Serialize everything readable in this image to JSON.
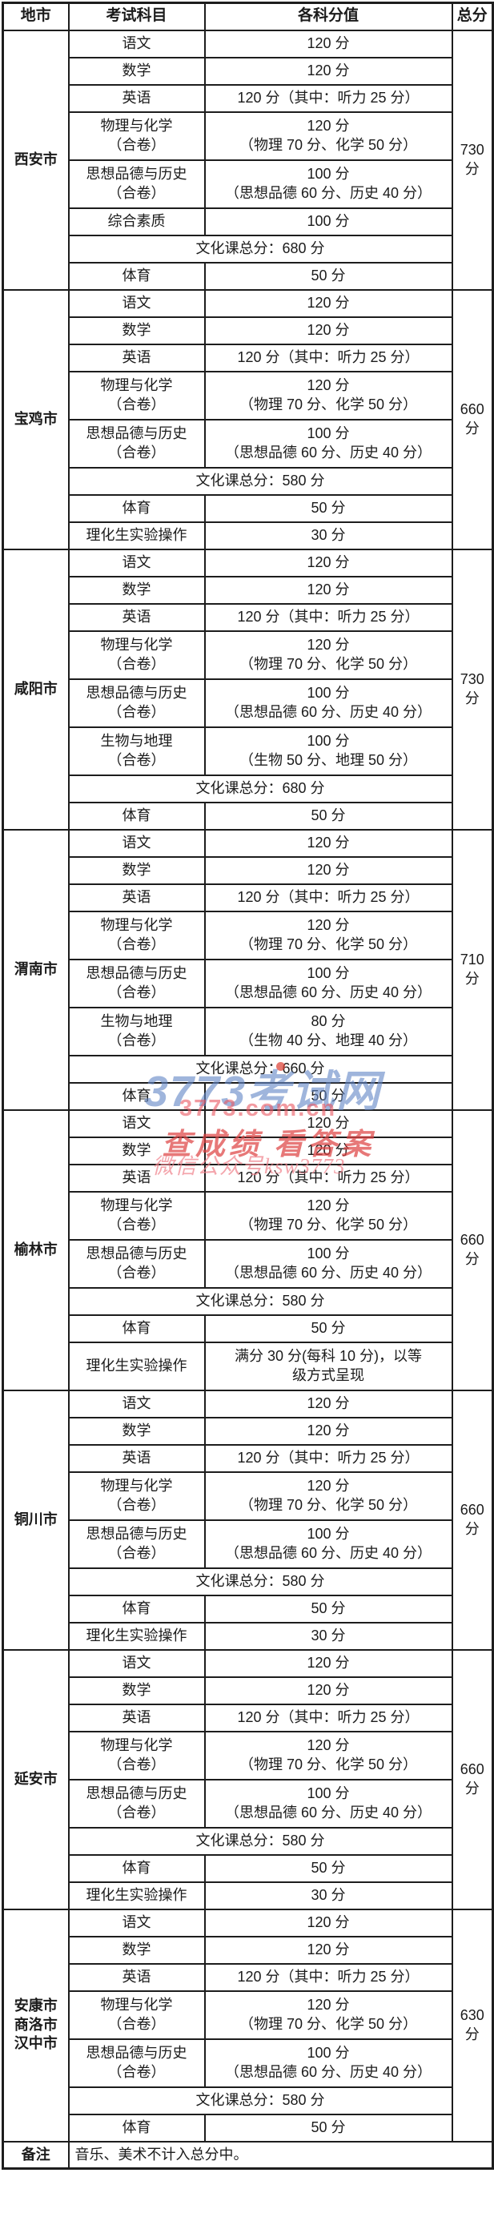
{
  "header": {
    "cols": [
      "地市",
      "考试科目",
      "各科分值",
      "总分"
    ]
  },
  "sections": [
    {
      "city": [
        "西安市"
      ],
      "total": [
        "730",
        "分"
      ],
      "rows": [
        {
          "subject": [
            "语文"
          ],
          "value": [
            "120 分"
          ]
        },
        {
          "subject": [
            "数学"
          ],
          "value": [
            "120 分"
          ]
        },
        {
          "subject": [
            "英语"
          ],
          "value": [
            "120 分（其中：听力 25 分）"
          ]
        },
        {
          "subject": [
            "物理与化学",
            "（合卷）"
          ],
          "value": [
            "120 分",
            "（物理 70 分、化学 50 分）"
          ]
        },
        {
          "subject": [
            "思想品德与历史",
            "（合卷）"
          ],
          "value": [
            "100 分",
            "（思想品德 60 分、历史 40 分）"
          ]
        },
        {
          "subject": [
            "综合素质"
          ],
          "value": [
            "100 分"
          ]
        },
        {
          "merged": [
            "文化课总分：680 分"
          ]
        },
        {
          "subject": [
            "体育"
          ],
          "value": [
            "50 分"
          ]
        }
      ]
    },
    {
      "city": [
        "宝鸡市"
      ],
      "total": [
        "660",
        "分"
      ],
      "rows": [
        {
          "subject": [
            "语文"
          ],
          "value": [
            "120 分"
          ]
        },
        {
          "subject": [
            "数学"
          ],
          "value": [
            "120 分"
          ]
        },
        {
          "subject": [
            "英语"
          ],
          "value": [
            "120 分（其中：听力 25 分）"
          ]
        },
        {
          "subject": [
            "物理与化学",
            "（合卷）"
          ],
          "value": [
            "120 分",
            "（物理 70 分、化学 50 分）"
          ]
        },
        {
          "subject": [
            "思想品德与历史",
            "（合卷）"
          ],
          "value": [
            "100 分",
            "（思想品德 60 分、历史 40 分）"
          ]
        },
        {
          "merged": [
            "文化课总分：580 分"
          ]
        },
        {
          "subject": [
            "体育"
          ],
          "value": [
            "50 分"
          ]
        },
        {
          "subject": [
            "理化生实验操作"
          ],
          "value": [
            "30 分"
          ]
        }
      ]
    },
    {
      "city": [
        "咸阳市"
      ],
      "total": [
        "730",
        "分"
      ],
      "rows": [
        {
          "subject": [
            "语文"
          ],
          "value": [
            "120 分"
          ]
        },
        {
          "subject": [
            "数学"
          ],
          "value": [
            "120 分"
          ]
        },
        {
          "subject": [
            "英语"
          ],
          "value": [
            "120 分（其中：听力 25 分）"
          ]
        },
        {
          "subject": [
            "物理与化学",
            "（合卷）"
          ],
          "value": [
            "120 分",
            "（物理 70 分、化学 50 分）"
          ]
        },
        {
          "subject": [
            "思想品德与历史",
            "（合卷）"
          ],
          "value": [
            "100 分",
            "（思想品德 60 分、历史 40 分）"
          ]
        },
        {
          "subject": [
            "生物与地理",
            "（合卷）"
          ],
          "value": [
            "100 分",
            "（生物 50 分、地理 50 分）"
          ]
        },
        {
          "merged": [
            "文化课总分：680 分"
          ]
        },
        {
          "subject": [
            "体育"
          ],
          "value": [
            "50 分"
          ]
        }
      ]
    },
    {
      "city": [
        "渭南市"
      ],
      "total": [
        "710",
        "分"
      ],
      "rows": [
        {
          "subject": [
            "语文"
          ],
          "value": [
            "120 分"
          ]
        },
        {
          "subject": [
            "数学"
          ],
          "value": [
            "120 分"
          ]
        },
        {
          "subject": [
            "英语"
          ],
          "value": [
            "120 分（其中：听力 25 分）"
          ]
        },
        {
          "subject": [
            "物理与化学",
            "（合卷）"
          ],
          "value": [
            "120 分",
            "（物理 70 分、化学 50 分）"
          ]
        },
        {
          "subject": [
            "思想品德与历史",
            "（合卷）"
          ],
          "value": [
            "100 分",
            "（思想品德 60 分、历史 40 分）"
          ]
        },
        {
          "subject": [
            "生物与地理",
            "（合卷）"
          ],
          "value": [
            "80 分",
            "（生物 40 分、地理 40 分）"
          ]
        },
        {
          "merged": [
            "文化课总分：660 分"
          ]
        },
        {
          "subject": [
            "体育"
          ],
          "value": [
            "50 分"
          ]
        }
      ]
    },
    {
      "city": [
        "榆林市"
      ],
      "total": [
        "660",
        "分"
      ],
      "rows": [
        {
          "subject": [
            "语文"
          ],
          "value": [
            "120 分"
          ]
        },
        {
          "subject": [
            "数学"
          ],
          "value": [
            "120 分"
          ]
        },
        {
          "subject": [
            "英语"
          ],
          "value": [
            "120 分（其中：听力 25 分）"
          ]
        },
        {
          "subject": [
            "物理与化学",
            "（合卷）"
          ],
          "value": [
            "120 分",
            "（物理 70 分、化学 50 分）"
          ]
        },
        {
          "subject": [
            "思想品德与历史",
            "（合卷）"
          ],
          "value": [
            "100 分",
            "（思想品德 60 分、历史 40 分）"
          ]
        },
        {
          "merged": [
            "文化课总分：580 分"
          ]
        },
        {
          "subject": [
            "体育"
          ],
          "value": [
            "50 分"
          ]
        },
        {
          "subject": [
            "理化生实验操作"
          ],
          "value": [
            "满分 30 分(每科 10 分)，以等",
            "级方式呈现"
          ]
        }
      ]
    },
    {
      "city": [
        "铜川市"
      ],
      "total": [
        "660",
        "分"
      ],
      "rows": [
        {
          "subject": [
            "语文"
          ],
          "value": [
            "120 分"
          ]
        },
        {
          "subject": [
            "数学"
          ],
          "value": [
            "120 分"
          ]
        },
        {
          "subject": [
            "英语"
          ],
          "value": [
            "120 分（其中：听力 25 分）"
          ]
        },
        {
          "subject": [
            "物理与化学",
            "（合卷）"
          ],
          "value": [
            "120 分",
            "（物理 70 分、化学 50 分）"
          ]
        },
        {
          "subject": [
            "思想品德与历史",
            "（合卷）"
          ],
          "value": [
            "100 分",
            "（思想品德 60 分、历史 40 分）"
          ]
        },
        {
          "merged": [
            "文化课总分：580 分"
          ]
        },
        {
          "subject": [
            "体育"
          ],
          "value": [
            "50 分"
          ]
        },
        {
          "subject": [
            "理化生实验操作"
          ],
          "value": [
            "30 分"
          ]
        }
      ]
    },
    {
      "city": [
        "延安市"
      ],
      "total": [
        "660",
        "分"
      ],
      "rows": [
        {
          "subject": [
            "语文"
          ],
          "value": [
            "120 分"
          ]
        },
        {
          "subject": [
            "数学"
          ],
          "value": [
            "120 分"
          ]
        },
        {
          "subject": [
            "英语"
          ],
          "value": [
            "120 分（其中：听力 25 分）"
          ]
        },
        {
          "subject": [
            "物理与化学",
            "（合卷）"
          ],
          "value": [
            "120 分",
            "（物理 70 分、化学 50 分）"
          ]
        },
        {
          "subject": [
            "思想品德与历史",
            "（合卷）"
          ],
          "value": [
            "100 分",
            "（思想品德 60 分、历史 40 分）"
          ]
        },
        {
          "merged": [
            "文化课总分：580 分"
          ]
        },
        {
          "subject": [
            "体育"
          ],
          "value": [
            "50 分"
          ]
        },
        {
          "subject": [
            "理化生实验操作"
          ],
          "value": [
            "30 分"
          ]
        }
      ]
    },
    {
      "city": [
        "安康市",
        "商洛市",
        "汉中市"
      ],
      "total": [
        "630",
        "分"
      ],
      "rows": [
        {
          "subject": [
            "语文"
          ],
          "value": [
            "120 分"
          ]
        },
        {
          "subject": [
            "数学"
          ],
          "value": [
            "120 分"
          ]
        },
        {
          "subject": [
            "英语"
          ],
          "value": [
            "120 分（其中：听力 25 分）"
          ]
        },
        {
          "subject": [
            "物理与化学",
            "（合卷）"
          ],
          "value": [
            "120 分",
            "（物理 70 分、化学 50 分）"
          ]
        },
        {
          "subject": [
            "思想品德与历史",
            "（合卷）"
          ],
          "value": [
            "100 分",
            "（思想品德 60 分、历史 40 分）"
          ]
        },
        {
          "merged": [
            "文化课总分：580 分"
          ]
        },
        {
          "subject": [
            "体育"
          ],
          "value": [
            "50 分"
          ]
        }
      ]
    }
  ],
  "footer": {
    "label": "备注",
    "note": "音乐、美术不计入总分中。"
  },
  "watermark": {
    "site": "3773考试网",
    "domain": "3773.com.cn",
    "slogan": "查成绩 看答案",
    "wechat": "微信公众号ksw3773",
    "blue": "#6488c6",
    "red": "#dd4444",
    "pink": "#f0808a"
  }
}
